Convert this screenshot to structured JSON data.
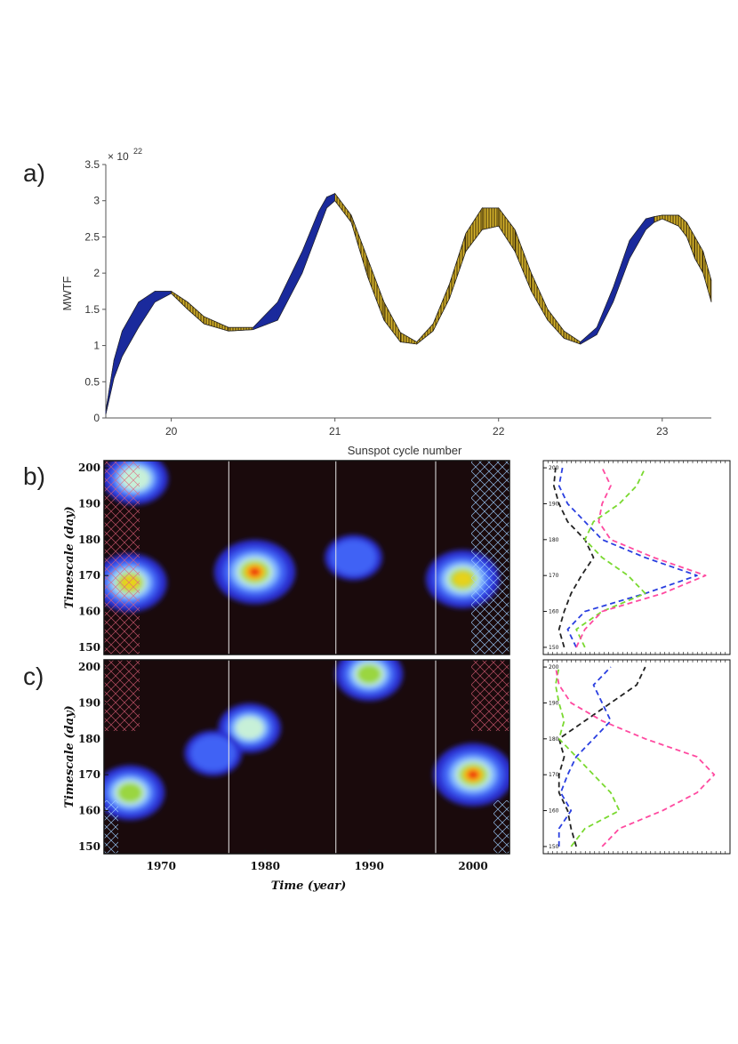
{
  "panel_labels": [
    "a)",
    "b)",
    "c)"
  ],
  "chart_data": [
    {
      "id": "a",
      "type": "area",
      "title": "",
      "xlabel": "Sunspot cycle number",
      "ylabel": "MWTF",
      "y_multiplier": "× 10",
      "y_exponent": "22",
      "xlim": [
        19.6,
        23.3
      ],
      "ylim": [
        0,
        3.5
      ],
      "xticks": [
        20,
        21,
        22,
        23
      ],
      "yticks": [
        0,
        0.5,
        1,
        1.5,
        2,
        2.5,
        3,
        3.5
      ],
      "rising_color": "#1a2a9c",
      "declining_color": "#c2a020",
      "series": [
        {
          "name": "upper",
          "x": [
            19.6,
            19.65,
            19.7,
            19.8,
            19.9,
            20.0,
            20.1,
            20.2,
            20.35,
            20.5,
            20.65,
            20.8,
            20.9,
            20.95,
            21.0,
            21.1,
            21.2,
            21.3,
            21.4,
            21.5,
            21.6,
            21.7,
            21.8,
            21.9,
            22.0,
            22.1,
            22.2,
            22.3,
            22.4,
            22.5,
            22.6,
            22.7,
            22.8,
            22.9,
            22.95,
            23.0,
            23.1,
            23.15,
            23.2,
            23.25,
            23.3
          ],
          "values": [
            0.1,
            0.8,
            1.2,
            1.6,
            1.75,
            1.75,
            1.6,
            1.4,
            1.25,
            1.25,
            1.6,
            2.3,
            2.85,
            3.05,
            3.1,
            2.8,
            2.2,
            1.6,
            1.18,
            1.05,
            1.3,
            1.85,
            2.55,
            2.9,
            2.9,
            2.6,
            2.0,
            1.5,
            1.2,
            1.05,
            1.25,
            1.8,
            2.45,
            2.75,
            2.78,
            2.8,
            2.8,
            2.7,
            2.5,
            2.3,
            1.9
          ]
        },
        {
          "name": "lower",
          "x": [
            19.6,
            19.65,
            19.7,
            19.8,
            19.9,
            20.0,
            20.1,
            20.2,
            20.35,
            20.5,
            20.65,
            20.8,
            20.9,
            20.95,
            21.0,
            21.1,
            21.2,
            21.3,
            21.4,
            21.5,
            21.6,
            21.7,
            21.8,
            21.9,
            22.0,
            22.1,
            22.2,
            22.3,
            22.4,
            22.5,
            22.6,
            22.7,
            22.8,
            22.9,
            22.95,
            23.0,
            23.1,
            23.15,
            23.2,
            23.25,
            23.3
          ],
          "values": [
            0.05,
            0.55,
            0.85,
            1.25,
            1.6,
            1.72,
            1.5,
            1.3,
            1.2,
            1.22,
            1.35,
            2.0,
            2.6,
            2.9,
            3.0,
            2.7,
            1.95,
            1.35,
            1.05,
            1.02,
            1.2,
            1.65,
            2.3,
            2.6,
            2.65,
            2.3,
            1.75,
            1.35,
            1.1,
            1.02,
            1.15,
            1.6,
            2.2,
            2.6,
            2.7,
            2.75,
            2.65,
            2.5,
            2.2,
            2.0,
            1.6
          ]
        }
      ],
      "rising_phases": [
        [
          19.6,
          20.0
        ],
        [
          20.5,
          21.0
        ],
        [
          22.5,
          22.95
        ]
      ]
    },
    {
      "id": "b",
      "type": "heatmap",
      "xlabel": "",
      "ylabel": "Timescale (day)",
      "xlim": [
        1964.5,
        2003.5
      ],
      "ylim": [
        148,
        202
      ],
      "xticks": [],
      "yticks": [
        150,
        160,
        170,
        180,
        190,
        200
      ],
      "cycle_minima": [
        1976.5,
        1986.8,
        1996.4
      ],
      "peaks": [
        {
          "t": 1967.0,
          "s": 168,
          "strength": 0.78
        },
        {
          "t": 1979.0,
          "s": 171,
          "strength": 1.0
        },
        {
          "t": 1999.0,
          "s": 169,
          "strength": 0.78
        },
        {
          "t": 1967.5,
          "s": 197,
          "strength": 0.55
        },
        {
          "t": 1988.5,
          "s": 175,
          "strength": 0.3
        }
      ],
      "side": {
        "ylim": [
          148,
          202
        ],
        "series": [
          {
            "name": "black",
            "color": "#222222",
            "s": [
              150,
              155,
              160,
              165,
              170,
              175,
              180,
              185,
              190,
              195,
              200
            ],
            "v": [
              0.08,
              0.05,
              0.08,
              0.12,
              0.18,
              0.25,
              0.2,
              0.1,
              0.05,
              0.02,
              0.03
            ]
          },
          {
            "name": "blue",
            "color": "#2a3fe0",
            "s": [
              150,
              155,
              160,
              165,
              170,
              175,
              180,
              185,
              190,
              195,
              200
            ],
            "v": [
              0.15,
              0.1,
              0.2,
              0.55,
              0.85,
              0.55,
              0.3,
              0.2,
              0.1,
              0.05,
              0.07
            ]
          },
          {
            "name": "green",
            "color": "#7ad930",
            "s": [
              150,
              155,
              160,
              165,
              170,
              175,
              180,
              185,
              190,
              195,
              200
            ],
            "v": [
              0.2,
              0.15,
              0.3,
              0.55,
              0.45,
              0.3,
              0.2,
              0.25,
              0.4,
              0.5,
              0.55
            ]
          },
          {
            "name": "pink",
            "color": "#ff4aa0",
            "s": [
              150,
              155,
              160,
              165,
              170,
              175,
              180,
              185,
              190,
              195,
              200
            ],
            "v": [
              0.15,
              0.2,
              0.3,
              0.65,
              0.9,
              0.6,
              0.35,
              0.28,
              0.3,
              0.35,
              0.3
            ]
          }
        ]
      }
    },
    {
      "id": "c",
      "type": "heatmap",
      "xlabel": "Time (year)",
      "ylabel": "Timescale (day)",
      "xlim": [
        1964.5,
        2003.5
      ],
      "ylim": [
        148,
        202
      ],
      "xticks": [
        1970,
        1980,
        1990,
        2000
      ],
      "yticks": [
        150,
        160,
        170,
        180,
        190,
        200
      ],
      "cycle_minima": [
        1976.5,
        1986.8,
        1996.4
      ],
      "peaks": [
        {
          "t": 1967.0,
          "s": 165,
          "strength": 0.65
        },
        {
          "t": 1978.5,
          "s": 183,
          "strength": 0.45
        },
        {
          "t": 1990.0,
          "s": 198,
          "strength": 0.6
        },
        {
          "t": 2000.0,
          "s": 170,
          "strength": 0.95
        },
        {
          "t": 1975.0,
          "s": 176,
          "strength": 0.3
        }
      ],
      "side": {
        "ylim": [
          148,
          202
        ],
        "series": [
          {
            "name": "black",
            "color": "#222222",
            "s": [
              150,
              155,
              160,
              165,
              170,
              175,
              180,
              185,
              190,
              195,
              200
            ],
            "v": [
              0.15,
              0.12,
              0.1,
              0.05,
              0.05,
              0.08,
              0.05,
              0.2,
              0.35,
              0.5,
              0.55
            ]
          },
          {
            "name": "blue",
            "color": "#2a3fe0",
            "s": [
              150,
              155,
              160,
              165,
              170,
              175,
              180,
              185,
              190,
              195,
              200
            ],
            "v": [
              0.05,
              0.05,
              0.12,
              0.06,
              0.1,
              0.15,
              0.25,
              0.35,
              0.3,
              0.25,
              0.35
            ]
          },
          {
            "name": "green",
            "color": "#7ad930",
            "s": [
              150,
              155,
              160,
              165,
              170,
              175,
              180,
              185,
              190,
              195,
              200
            ],
            "v": [
              0.12,
              0.2,
              0.4,
              0.35,
              0.25,
              0.15,
              0.05,
              0.08,
              0.05,
              0.03,
              0.05
            ]
          },
          {
            "name": "pink",
            "color": "#ff4aa0",
            "s": [
              150,
              155,
              160,
              165,
              170,
              175,
              180,
              185,
              190,
              195,
              200
            ],
            "v": [
              0.3,
              0.4,
              0.65,
              0.85,
              0.95,
              0.85,
              0.55,
              0.3,
              0.12,
              0.05,
              0.03
            ]
          }
        ]
      }
    }
  ]
}
